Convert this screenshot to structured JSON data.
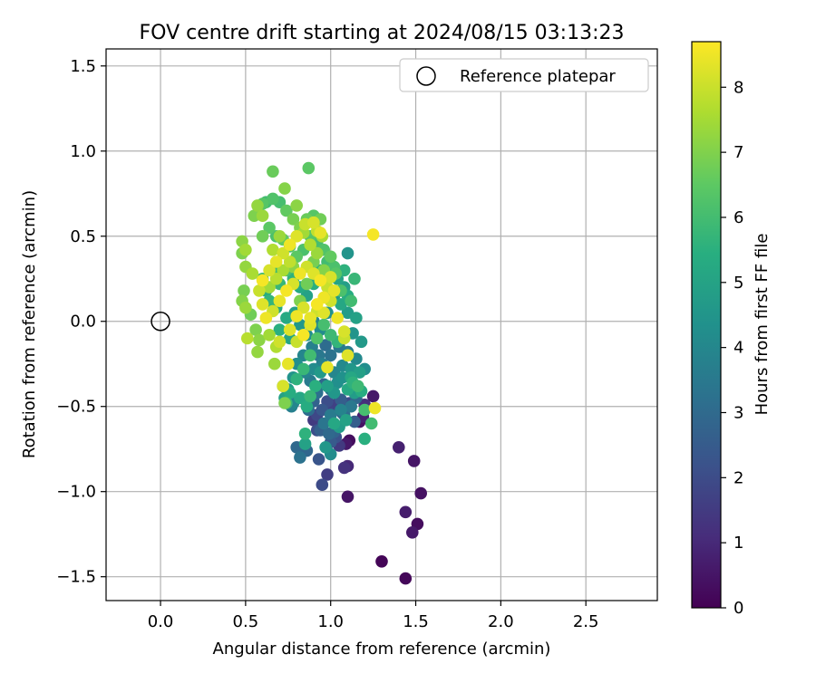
{
  "chart_data": {
    "type": "scatter",
    "title": "FOV centre drift starting at 2024/08/15 03:13:23",
    "xlabel": "Angular distance from reference (arcmin)",
    "ylabel": "Rotation from reference (arcmin)",
    "xlim": [
      -0.32,
      2.92
    ],
    "ylim": [
      -1.64,
      1.6
    ],
    "xticks": [
      0.0,
      0.5,
      1.0,
      1.5,
      2.0,
      2.5
    ],
    "xtick_labels": [
      "0.0",
      "0.5",
      "1.0",
      "1.5",
      "2.0",
      "2.5"
    ],
    "yticks": [
      -1.5,
      -1.0,
      -0.5,
      0.0,
      0.5,
      1.0,
      1.5
    ],
    "ytick_labels": [
      "−1.5",
      "−1.0",
      "−0.5",
      "0.0",
      "0.5",
      "1.0",
      "1.5"
    ],
    "grid": true,
    "legend": {
      "position": "top-right",
      "entries": [
        "Reference platepar"
      ]
    },
    "reference_point": {
      "name": "Reference platepar",
      "x": 0.0,
      "y": 0.0,
      "marker": "hollow-circle"
    },
    "colorbar": {
      "label": "Hours from first FF file",
      "colormap": "viridis",
      "range": [
        0,
        8.7
      ],
      "ticks": [
        0,
        1,
        2,
        3,
        4,
        5,
        6,
        7,
        8
      ],
      "tick_labels": [
        "0",
        "1",
        "2",
        "3",
        "4",
        "5",
        "6",
        "7",
        "8"
      ]
    },
    "points": [
      [
        1.3,
        -1.41,
        0.1
      ],
      [
        1.44,
        -1.51,
        0.15
      ],
      [
        1.51,
        -1.19,
        0.3
      ],
      [
        1.48,
        -1.24,
        0.6
      ],
      [
        1.53,
        -1.01,
        0.4
      ],
      [
        1.44,
        -1.12,
        0.7
      ],
      [
        1.49,
        -0.82,
        0.5
      ],
      [
        1.4,
        -0.74,
        0.8
      ],
      [
        1.1,
        -1.03,
        0.5
      ],
      [
        1.11,
        -0.7,
        0.3
      ],
      [
        1.09,
        -0.72,
        0.6
      ],
      [
        1.1,
        -0.85,
        1.0
      ],
      [
        1.08,
        -0.86,
        1.3
      ],
      [
        0.98,
        -0.9,
        1.6
      ],
      [
        0.95,
        -0.96,
        2.0
      ],
      [
        0.93,
        -0.81,
        2.3
      ],
      [
        0.86,
        -0.76,
        2.9
      ],
      [
        0.82,
        -0.8,
        3.3
      ],
      [
        0.8,
        -0.74,
        3.0
      ],
      [
        1.17,
        -0.59,
        0.4
      ],
      [
        1.19,
        -0.56,
        0.8
      ],
      [
        1.25,
        -0.44,
        0.6
      ],
      [
        1.2,
        -0.49,
        1.2
      ],
      [
        1.05,
        -0.73,
        1.5
      ],
      [
        1.0,
        -0.71,
        2.5
      ],
      [
        1.02,
        -0.65,
        2.8
      ],
      [
        0.9,
        -0.58,
        1.5
      ],
      [
        0.92,
        -0.55,
        1.9
      ],
      [
        0.95,
        -0.52,
        2.4
      ],
      [
        0.98,
        -0.47,
        2.1
      ],
      [
        1.03,
        -0.49,
        1.7
      ],
      [
        1.06,
        -0.46,
        2.6
      ],
      [
        1.08,
        -0.55,
        3.1
      ],
      [
        1.12,
        -0.5,
        3.5
      ],
      [
        1.15,
        -0.45,
        3.0
      ],
      [
        1.0,
        -0.4,
        3.4
      ],
      [
        0.96,
        -0.37,
        2.9
      ],
      [
        0.92,
        -0.42,
        3.2
      ],
      [
        0.88,
        -0.35,
        3.6
      ],
      [
        0.85,
        -0.3,
        3.9
      ],
      [
        0.9,
        -0.28,
        4.2
      ],
      [
        0.95,
        -0.25,
        3.8
      ],
      [
        1.02,
        -0.3,
        4.0
      ],
      [
        1.07,
        -0.33,
        4.4
      ],
      [
        1.12,
        -0.28,
        4.6
      ],
      [
        1.17,
        -0.3,
        4.9
      ],
      [
        1.2,
        -0.28,
        4.3
      ],
      [
        1.15,
        -0.22,
        4.1
      ],
      [
        1.1,
        -0.18,
        3.7
      ],
      [
        1.05,
        -0.15,
        3.5
      ],
      [
        1.0,
        -0.2,
        3.3
      ],
      [
        0.97,
        -0.14,
        3.1
      ],
      [
        0.93,
        -0.2,
        3.5
      ],
      [
        0.89,
        -0.15,
        3.8
      ],
      [
        0.84,
        -0.2,
        4.0
      ],
      [
        0.8,
        -0.25,
        4.3
      ],
      [
        0.78,
        -0.33,
        4.5
      ],
      [
        0.75,
        -0.4,
        4.8
      ],
      [
        0.73,
        -0.45,
        5.0
      ],
      [
        0.72,
        -0.38,
        4.2
      ],
      [
        0.77,
        -0.5,
        3.8
      ],
      [
        0.82,
        -0.45,
        5.2
      ],
      [
        0.86,
        -0.5,
        5.4
      ],
      [
        0.88,
        -0.44,
        5.8
      ],
      [
        0.91,
        -0.38,
        5.5
      ],
      [
        0.85,
        -0.72,
        5.0
      ],
      [
        0.85,
        -0.66,
        5.6
      ],
      [
        1.02,
        -0.6,
        5.2
      ],
      [
        1.05,
        -0.62,
        4.8
      ],
      [
        1.09,
        -0.58,
        5.0
      ],
      [
        1.1,
        -0.4,
        5.3
      ],
      [
        1.13,
        -0.36,
        5.6
      ],
      [
        1.16,
        -0.38,
        5.9
      ],
      [
        1.2,
        -0.52,
        6.1
      ],
      [
        1.24,
        -0.6,
        6.0
      ],
      [
        1.2,
        -0.69,
        5.5
      ],
      [
        1.18,
        -0.12,
        4.7
      ],
      [
        1.13,
        -0.07,
        4.5
      ],
      [
        1.15,
        0.02,
        5.0
      ],
      [
        1.1,
        0.05,
        4.8
      ],
      [
        1.06,
        0.1,
        5.2
      ],
      [
        1.1,
        0.15,
        5.4
      ],
      [
        1.08,
        0.2,
        4.9
      ],
      [
        1.04,
        0.25,
        5.1
      ],
      [
        1.1,
        0.4,
        4.5
      ],
      [
        1.08,
        0.3,
        5.6
      ],
      [
        1.02,
        0.15,
        4.6
      ],
      [
        0.98,
        0.05,
        4.4
      ],
      [
        0.94,
        -0.05,
        4.2
      ],
      [
        0.9,
        0.0,
        4.0
      ],
      [
        0.86,
        -0.08,
        4.3
      ],
      [
        0.82,
        -0.02,
        4.6
      ],
      [
        0.79,
        0.05,
        4.9
      ],
      [
        0.76,
        -0.1,
        5.1
      ],
      [
        0.74,
        0.02,
        5.3
      ],
      [
        0.7,
        -0.05,
        5.5
      ],
      [
        0.68,
        0.08,
        5.2
      ],
      [
        0.64,
        0.12,
        5.7
      ],
      [
        0.62,
        0.18,
        5.4
      ],
      [
        0.6,
        0.25,
        5.9
      ],
      [
        0.66,
        0.3,
        6.0
      ],
      [
        0.7,
        0.22,
        5.8
      ],
      [
        0.74,
        0.3,
        6.1
      ],
      [
        0.78,
        0.25,
        5.6
      ],
      [
        0.82,
        0.2,
        5.3
      ],
      [
        0.86,
        0.15,
        5.0
      ],
      [
        0.9,
        0.22,
        5.5
      ],
      [
        0.94,
        0.3,
        5.7
      ],
      [
        0.98,
        0.35,
        6.0
      ],
      [
        1.02,
        0.32,
        6.2
      ],
      [
        0.96,
        0.42,
        6.3
      ],
      [
        0.92,
        0.46,
        6.1
      ],
      [
        0.88,
        0.5,
        6.4
      ],
      [
        0.84,
        0.42,
        6.2
      ],
      [
        0.8,
        0.38,
        6.5
      ],
      [
        0.76,
        0.44,
        6.3
      ],
      [
        0.72,
        0.48,
        6.6
      ],
      [
        0.68,
        0.5,
        6.2
      ],
      [
        0.64,
        0.55,
        6.5
      ],
      [
        0.6,
        0.5,
        6.8
      ],
      [
        0.6,
        0.69,
        6.4
      ],
      [
        0.62,
        0.7,
        6.0
      ],
      [
        0.66,
        0.72,
        6.3
      ],
      [
        0.7,
        0.7,
        6.1
      ],
      [
        0.74,
        0.65,
        6.6
      ],
      [
        0.78,
        0.6,
        6.9
      ],
      [
        0.82,
        0.55,
        7.0
      ],
      [
        0.86,
        0.6,
        6.7
      ],
      [
        0.9,
        0.62,
        6.4
      ],
      [
        0.94,
        0.6,
        6.8
      ],
      [
        0.66,
        0.88,
        6.7
      ],
      [
        0.87,
        0.9,
        6.5
      ],
      [
        0.73,
        0.78,
        7.1
      ],
      [
        0.57,
        0.68,
        7.3
      ],
      [
        0.55,
        0.62,
        7.0
      ],
      [
        0.6,
        0.62,
        7.4
      ],
      [
        0.8,
        0.68,
        7.2
      ],
      [
        0.84,
        0.52,
        7.5
      ],
      [
        0.88,
        0.45,
        7.7
      ],
      [
        0.92,
        0.4,
        7.4
      ],
      [
        0.95,
        0.5,
        7.6
      ],
      [
        0.92,
        0.53,
        7.9
      ],
      [
        0.48,
        0.47,
        7.2
      ],
      [
        0.5,
        0.42,
        7.5
      ],
      [
        0.48,
        0.4,
        7.0
      ],
      [
        0.5,
        0.32,
        7.3
      ],
      [
        0.54,
        0.28,
        7.6
      ],
      [
        0.49,
        0.18,
        6.9
      ],
      [
        0.48,
        0.12,
        7.1
      ],
      [
        0.5,
        0.08,
        7.4
      ],
      [
        0.53,
        0.04,
        6.8
      ],
      [
        0.56,
        -0.05,
        7.0
      ],
      [
        0.58,
        -0.11,
        7.2
      ],
      [
        0.51,
        -0.1,
        7.8
      ],
      [
        0.57,
        -0.18,
        7.3
      ],
      [
        0.64,
        -0.08,
        7.5
      ],
      [
        0.68,
        -0.15,
        7.7
      ],
      [
        0.67,
        -0.25,
        7.4
      ],
      [
        0.72,
        -0.38,
        8.2
      ],
      [
        0.73,
        -0.48,
        7.0
      ],
      [
        0.75,
        -0.25,
        8.4
      ],
      [
        0.7,
        -0.12,
        8.1
      ],
      [
        0.76,
        -0.05,
        8.3
      ],
      [
        0.8,
        0.03,
        8.5
      ],
      [
        0.84,
        0.08,
        8.2
      ],
      [
        0.88,
        0.02,
        8.4
      ],
      [
        0.92,
        0.1,
        8.6
      ],
      [
        0.96,
        0.05,
        8.3
      ],
      [
        1.0,
        0.12,
        8.1
      ],
      [
        1.04,
        0.02,
        8.5
      ],
      [
        1.08,
        -0.06,
        8.2
      ],
      [
        0.98,
        -0.27,
        8.4
      ],
      [
        1.1,
        -0.2,
        8.3
      ],
      [
        1.08,
        -0.1,
        8.0
      ],
      [
        1.26,
        -0.51,
        8.5
      ],
      [
        1.25,
        0.51,
        8.6
      ],
      [
        0.94,
        0.52,
        8.4
      ],
      [
        0.9,
        0.58,
        8.2
      ],
      [
        0.85,
        0.57,
        8.0
      ],
      [
        0.8,
        0.5,
        8.3
      ],
      [
        0.76,
        0.45,
        8.5
      ],
      [
        0.72,
        0.4,
        8.1
      ],
      [
        0.68,
        0.35,
        8.4
      ],
      [
        0.64,
        0.3,
        8.2
      ],
      [
        0.6,
        0.24,
        8.6
      ],
      [
        0.58,
        0.18,
        8.0
      ],
      [
        0.6,
        0.1,
        8.3
      ],
      [
        0.62,
        0.02,
        8.5
      ],
      [
        0.66,
        0.06,
        8.1
      ],
      [
        0.7,
        0.12,
        8.4
      ],
      [
        0.74,
        0.18,
        8.6
      ],
      [
        0.78,
        0.22,
        8.2
      ],
      [
        0.82,
        0.28,
        8.5
      ],
      [
        0.86,
        0.32,
        8.1
      ],
      [
        0.9,
        0.28,
        8.3
      ],
      [
        0.94,
        0.24,
        8.6
      ],
      [
        0.98,
        0.2,
        8.0
      ],
      [
        1.02,
        0.18,
        8.4
      ],
      [
        1.0,
        0.26,
        8.2
      ],
      [
        0.96,
        0.14,
        8.5
      ],
      [
        0.92,
        0.06,
        8.1
      ],
      [
        0.88,
        -0.02,
        8.3
      ],
      [
        0.84,
        -0.08,
        8.6
      ],
      [
        0.8,
        -0.12,
        8.0
      ],
      [
        0.76,
        0.35,
        7.9
      ],
      [
        0.72,
        0.3,
        7.6
      ],
      [
        0.68,
        0.25,
        7.8
      ],
      [
        0.64,
        0.2,
        7.5
      ],
      [
        0.66,
        0.42,
        7.7
      ],
      [
        0.7,
        0.5,
        7.4
      ],
      [
        0.78,
        0.32,
        7.2
      ],
      [
        0.82,
        0.12,
        7.0
      ],
      [
        0.86,
        0.22,
        6.8
      ],
      [
        0.9,
        0.35,
        6.9
      ],
      [
        0.96,
        0.3,
        7.1
      ],
      [
        1.0,
        0.38,
        6.6
      ],
      [
        1.03,
        0.28,
        6.4
      ],
      [
        1.06,
        0.18,
        6.2
      ],
      [
        1.12,
        0.12,
        6.0
      ],
      [
        1.14,
        0.25,
        5.8
      ],
      [
        1.04,
        -0.12,
        5.7
      ],
      [
        1.0,
        -0.08,
        5.9
      ],
      [
        0.96,
        -0.02,
        6.1
      ],
      [
        0.92,
        -0.1,
        6.3
      ],
      [
        0.88,
        -0.2,
        6.0
      ],
      [
        0.84,
        -0.28,
        5.8
      ],
      [
        0.8,
        -0.34,
        5.6
      ],
      [
        0.76,
        -0.42,
        5.4
      ],
      [
        0.74,
        -0.48,
        5.8
      ],
      [
        0.78,
        -0.48,
        4.0
      ],
      [
        0.94,
        -0.3,
        4.7
      ],
      [
        0.98,
        -0.38,
        4.9
      ],
      [
        1.02,
        -0.42,
        4.6
      ],
      [
        1.04,
        -0.36,
        4.3
      ],
      [
        1.07,
        -0.26,
        4.1
      ],
      [
        1.12,
        -0.33,
        5.2
      ],
      [
        1.14,
        -0.42,
        4.8
      ],
      [
        1.18,
        -0.41,
        5.4
      ],
      [
        1.06,
        -0.52,
        3.9
      ],
      [
        1.0,
        -0.55,
        3.6
      ],
      [
        0.96,
        -0.6,
        3.4
      ],
      [
        0.94,
        -0.64,
        2.7
      ],
      [
        0.99,
        -0.66,
        3.0
      ],
      [
        1.03,
        -0.68,
        2.2
      ],
      [
        1.07,
        -0.54,
        2.7
      ],
      [
        1.11,
        -0.48,
        2.0
      ],
      [
        1.14,
        -0.59,
        2.6
      ],
      [
        0.9,
        -0.47,
        2.8
      ],
      [
        0.87,
        -0.52,
        3.1
      ],
      [
        0.98,
        -0.52,
        1.8
      ],
      [
        0.92,
        -0.64,
        2.1
      ],
      [
        1.0,
        -0.78,
        4.2
      ],
      [
        0.97,
        -0.74,
        4.6
      ]
    ]
  }
}
